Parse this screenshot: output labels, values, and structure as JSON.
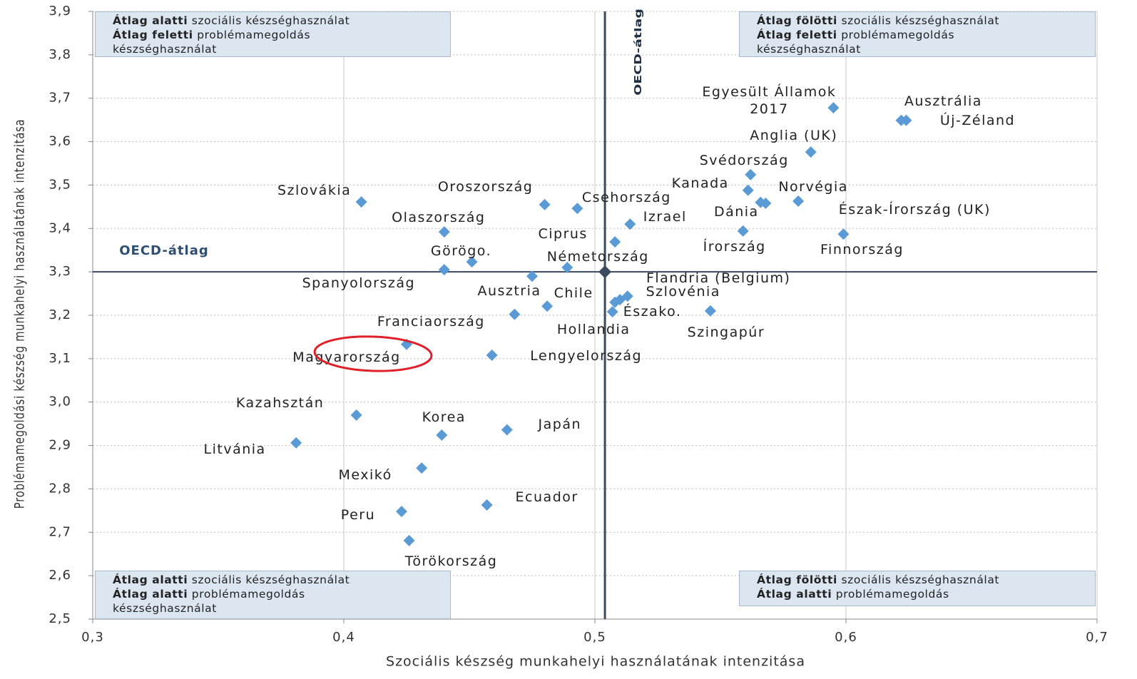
{
  "chart_data": {
    "type": "scatter",
    "xlabel": "Szociális készség munkahelyi használatának intenzitása",
    "ylabel": "Problémamegoldási készség munkahelyi használatának intenzitása",
    "xlim": [
      0.3,
      0.7
    ],
    "ylim": [
      2.5,
      3.9
    ],
    "xticks": [
      {
        "value": 0.3,
        "label": "0,3"
      },
      {
        "value": 0.4,
        "label": "0,4"
      },
      {
        "value": 0.5,
        "label": "0,5"
      },
      {
        "value": 0.6,
        "label": "0,6"
      },
      {
        "value": 0.7,
        "label": "0,7"
      }
    ],
    "yticks": [
      {
        "value": 2.5,
        "label": "2,5"
      },
      {
        "value": 2.6,
        "label": "2,6"
      },
      {
        "value": 2.7,
        "label": "2,7"
      },
      {
        "value": 2.8,
        "label": "2,8"
      },
      {
        "value": 2.9,
        "label": "2,9"
      },
      {
        "value": 3.0,
        "label": "3,0"
      },
      {
        "value": 3.1,
        "label": "3,1"
      },
      {
        "value": 3.2,
        "label": "3,2"
      },
      {
        "value": 3.3,
        "label": "3,3"
      },
      {
        "value": 3.4,
        "label": "3,4"
      },
      {
        "value": 3.5,
        "label": "3,5"
      },
      {
        "value": 3.6,
        "label": "3,6"
      },
      {
        "value": 3.7,
        "label": "3,7"
      },
      {
        "value": 3.8,
        "label": "3,8"
      },
      {
        "value": 3.9,
        "label": "3,9"
      }
    ],
    "grid": true,
    "color": "#5b9bd5",
    "labels": [
      "Szlovákia",
      "Oroszország",
      "Csehország",
      "Olaszország",
      "Izrael",
      "Ciprus",
      "Görögo.",
      "Németország",
      "Spanyolország",
      "Ausztria",
      "Chile",
      "Flandria (Belgium)",
      "Szlovénia",
      "Észako.",
      "Hollandia",
      "Franciaország",
      "Szingapúr",
      "Lengyelország",
      "Magyarország",
      "Kazahsztán",
      "Korea",
      "Japán",
      "Litvánia",
      "Mexikó",
      "Ecuador",
      "Peru",
      "Törökország",
      "Egyesült Államok\n2017",
      "Ausztrália",
      "Új-Zéland",
      "Anglia (UK)",
      "Svédország",
      "Kanada",
      "Norvégia",
      "Dánia",
      "Észak-Írország (UK)",
      "Írország",
      "Finnország"
    ],
    "x": [
      0.407,
      0.48,
      0.493,
      0.44,
      0.514,
      0.508,
      0.451,
      0.489,
      0.44,
      0.475,
      0.481,
      0.51,
      0.513,
      0.507,
      0.508,
      0.468,
      0.546,
      0.459,
      0.425,
      0.405,
      0.439,
      0.465,
      0.381,
      0.431,
      0.457,
      0.423,
      0.426,
      0.595,
      0.622,
      0.624,
      0.586,
      0.562,
      0.561,
      0.581,
      0.566,
      0.568,
      0.559,
      0.599
    ],
    "y": [
      3.461,
      3.455,
      3.446,
      3.392,
      3.41,
      3.369,
      3.323,
      3.31,
      3.305,
      3.29,
      3.221,
      3.236,
      3.244,
      3.208,
      3.23,
      3.202,
      3.21,
      3.108,
      3.133,
      2.97,
      2.924,
      2.936,
      2.906,
      2.848,
      2.763,
      2.748,
      2.681,
      3.678,
      3.649,
      3.649,
      3.576,
      3.524,
      3.488,
      3.463,
      3.46,
      3.458,
      3.394,
      3.387
    ],
    "reference": {
      "x": 0.504,
      "y": 3.3,
      "vertical_label": "OECD-átlag",
      "horizontal_label": "OECD-átlag",
      "color": "#3b4a5e"
    },
    "quadrants": [
      [
        {
          "bold": "Átlag alatti",
          "text": "szociális készséghasználat"
        },
        {
          "bold": "Átlag feletti",
          "text": "problémamegoldás"
        },
        {
          "text": "készséghasználat"
        }
      ],
      [
        {
          "bold": "Átlag fölötti",
          "text": "szociális készséghasználat"
        },
        {
          "bold": "Átlag feletti",
          "text": "problémamegoldás"
        },
        {
          "text": "készséghasználat"
        }
      ],
      [
        {
          "bold": "Átlag alatti",
          "text": "szociális készséghasználat"
        },
        {
          "bold": "Átlag alatti",
          "text": "problémamegoldás"
        },
        {
          "text": "készséghasználat"
        }
      ],
      [
        {
          "bold": "Átlag fölötti",
          "text": "szociális készséghasználat"
        },
        {
          "bold": "Átlag alatti",
          "text": "problémamegoldás"
        }
      ]
    ]
  }
}
